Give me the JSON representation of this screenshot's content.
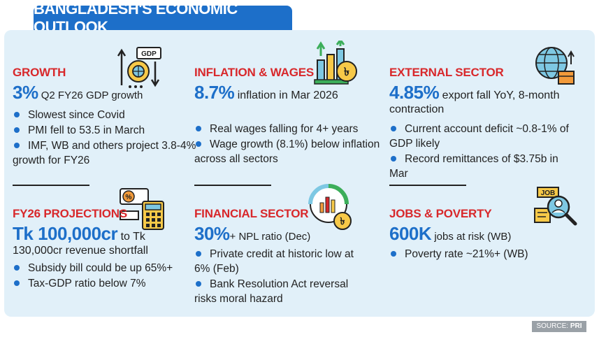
{
  "title": "BANGLADESH'S ECONOMIC OUTLOOK",
  "colors": {
    "accent": "#1d6fc9",
    "section_title": "#d8282b",
    "panel_bg": "#e1f0f9"
  },
  "sections": {
    "growth": {
      "icon": "gdp-chart-icon",
      "title": "GROWTH",
      "big": "3%",
      "rest": " Q2 FY26 GDP growth",
      "bullets": [
        "Slowest since Covid",
        "PMI fell to 53.5 in March",
        "IMF, WB and others project 3.8-4% growth for FY26"
      ]
    },
    "inflation": {
      "icon": "rising-prices-icon",
      "title": "INFLATION & WAGES",
      "big": "8.7%",
      "rest": " inflation in Mar 2026",
      "bullets": [
        "Real wages falling for 4+ years",
        "Wage growth (8.1%) below inflation across all sectors"
      ]
    },
    "external": {
      "icon": "globe-export-icon",
      "title": "EXTERNAL SECTOR",
      "big": "4.85%",
      "rest": " export fall YoY, 8-month contraction",
      "bullets": [
        "Current account deficit ~0.8-1% of GDP likely",
        "Record remittances of $3.75b in Mar"
      ]
    },
    "projections": {
      "icon": "calculator-icon",
      "title": "FY26 PROJECTIONS",
      "big": "Tk 100,000cr",
      "rest": " to Tk 130,000cr revenue shortfall",
      "bullets": [
        "Subsidy bill could be up 65%+",
        "Tax-GDP ratio below 7%"
      ]
    },
    "financial": {
      "icon": "financial-chart-icon",
      "title": "FINANCIAL SECTOR",
      "big": "30%",
      "rest": "+ NPL ratio (Dec)",
      "bullets": [
        "Private credit at historic low at 6% (Feb)",
        "Bank Resolution Act reversal risks moral hazard"
      ]
    },
    "jobs": {
      "icon": "job-search-icon",
      "title": "JOBS & POVERTY",
      "big": "600K",
      "rest": " jobs at risk (WB)",
      "bullets": [
        "Poverty rate ~21%+ (WB)"
      ]
    }
  },
  "source": {
    "label": "SOURCE: ",
    "value": "PRI"
  }
}
